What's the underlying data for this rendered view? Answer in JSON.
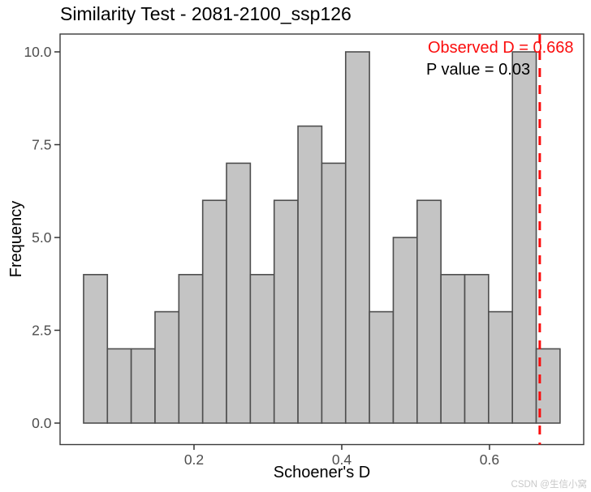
{
  "chart_data": {
    "type": "histogram",
    "title": "Similarity Test - 2081-2100_ssp126",
    "xlabel": "Schoener's D",
    "ylabel": "Frequency",
    "bins": {
      "start": 0.0505,
      "width": 0.03225
    },
    "counts": [
      4,
      2,
      2,
      3,
      4,
      6,
      7,
      4,
      6,
      8,
      7,
      10,
      3,
      5,
      6,
      4,
      4,
      3,
      10,
      2
    ],
    "x_ticks": [
      {
        "value": 0.2,
        "label": "0.2"
      },
      {
        "value": 0.4,
        "label": "0.4"
      },
      {
        "value": 0.6,
        "label": "0.6"
      }
    ],
    "y_ticks": [
      {
        "value": 0,
        "label": "0.0"
      },
      {
        "value": 2.5,
        "label": "2.5"
      },
      {
        "value": 5,
        "label": "5.0"
      },
      {
        "value": 7.5,
        "label": "7.5"
      },
      {
        "value": 10,
        "label": "10.0"
      }
    ],
    "xlim": [
      0.0187,
      0.7275
    ],
    "ylim": [
      -0.579,
      10.48
    ],
    "grid": "off",
    "legend": "none",
    "observed_d": 0.668,
    "annotations": {
      "observed_label": "Observed D = 0.668",
      "p_value_label": "P value = 0.03"
    },
    "colors": {
      "bar_fill": "#c4c4c4",
      "bar_stroke": "#4e4e4e",
      "observed_line": "#fb0d0d",
      "observed_text": "#fb0d0d",
      "p_value_text": "#000000",
      "panel_border": "#3a3a3a",
      "tick_mark": "#333333",
      "tick_label": "#4d4d4d",
      "axis_title": "#000000",
      "title": "#000000",
      "watermark": "#c9c9c9",
      "background": "#ffffff"
    }
  },
  "watermark": "CSDN @生信小窝"
}
